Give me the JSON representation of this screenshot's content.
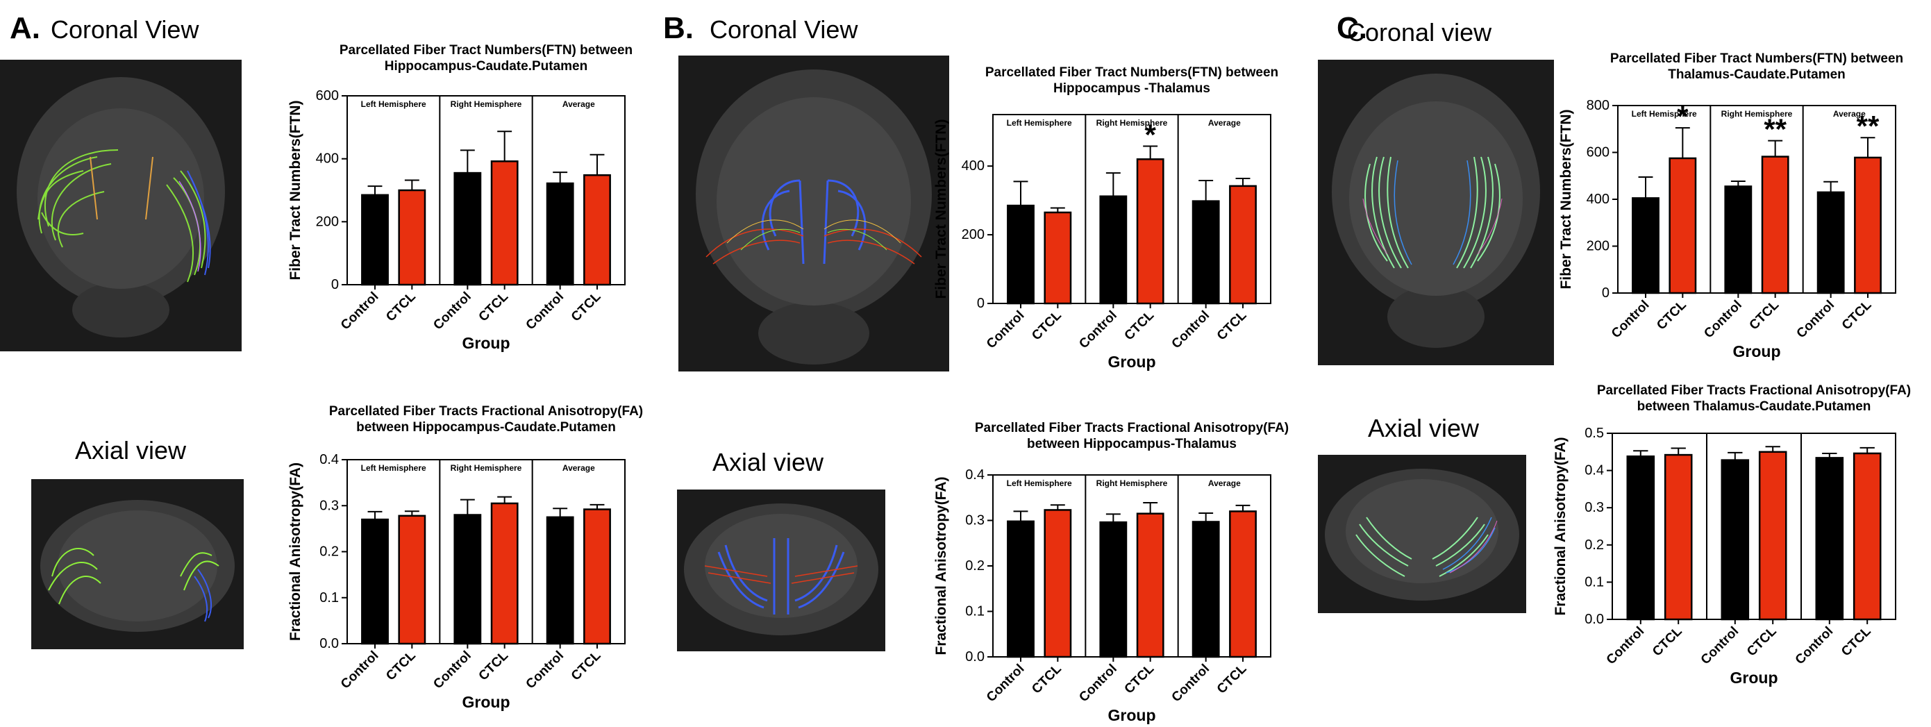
{
  "panels": [
    {
      "letter": "A.",
      "coronal": "Coronal View",
      "axial": "Axial view"
    },
    {
      "letter": "B.",
      "coronal": "Coronal View",
      "axial": "Axial view"
    },
    {
      "letter": "C.",
      "coronal": "Coronal view",
      "axial": "Axial view"
    }
  ],
  "colors": {
    "control": "#000000",
    "ctcl": "#e8300f",
    "brain_bg": "#1b1b1b"
  },
  "chart_data": [
    {
      "id": "a-ftn",
      "type": "bar",
      "title": [
        "Parcellated Fiber Tract Numbers(FTN) between",
        "Hippocampus-Caudate.Putamen"
      ],
      "ylabel": "Fiber Tract Numbers(FTN)",
      "xlabel": "Group",
      "ylim": [
        0,
        600
      ],
      "yticks": [
        "0",
        "200",
        "400",
        "600"
      ],
      "groups": [
        "Left Hemisphere",
        "Right Hemisphere",
        "Average"
      ],
      "categories": [
        "Control",
        "CTCL"
      ],
      "values": [
        [
          285,
          300
        ],
        [
          355,
          392
        ],
        [
          322,
          348
        ]
      ],
      "errors": [
        [
          28,
          32
        ],
        [
          72,
          95
        ],
        [
          35,
          65
        ]
      ],
      "stars": [
        [
          "",
          ""
        ],
        [
          "",
          ""
        ],
        [
          "",
          ""
        ]
      ]
    },
    {
      "id": "a-fa",
      "type": "bar",
      "title": [
        "Parcellated Fiber Tracts Fractional Anisotropy(FA)",
        "between Hippocampus-Caudate.Putamen"
      ],
      "ylabel": "Fractional Anisotropy(FA)",
      "xlabel": "Group",
      "ylim": [
        0,
        0.4
      ],
      "yticks": [
        "0.0",
        "0.1",
        "0.2",
        "0.3",
        "0.4"
      ],
      "groups": [
        "Left Hemisphere",
        "Right Hemisphere",
        "Average"
      ],
      "categories": [
        "Control",
        "CTCL"
      ],
      "values": [
        [
          0.27,
          0.278
        ],
        [
          0.28,
          0.305
        ],
        [
          0.275,
          0.292
        ]
      ],
      "errors": [
        [
          0.017,
          0.01
        ],
        [
          0.033,
          0.014
        ],
        [
          0.019,
          0.01
        ]
      ],
      "stars": [
        [
          "",
          ""
        ],
        [
          "",
          ""
        ],
        [
          "",
          ""
        ]
      ]
    },
    {
      "id": "b-ftn",
      "type": "bar",
      "title": [
        "Parcellated Fiber Tract Numbers(FTN) between",
        "Hippocampus -Thalamus"
      ],
      "ylabel": "Fiber Tract Numbers(FTN)",
      "xlabel": "Group",
      "ylim": [
        0,
        550
      ],
      "yticks": [
        "0",
        "200",
        "400"
      ],
      "ytick_values": [
        0,
        200,
        400
      ],
      "groups": [
        "Left Hemisphere",
        "Right Hemisphere",
        "Average"
      ],
      "categories": [
        "Control",
        "CTCL"
      ],
      "values": [
        [
          285,
          265
        ],
        [
          312,
          420
        ],
        [
          298,
          342
        ]
      ],
      "errors": [
        [
          70,
          13
        ],
        [
          68,
          38
        ],
        [
          60,
          22
        ]
      ],
      "stars": [
        [
          "",
          ""
        ],
        [
          "",
          "*"
        ],
        [
          "",
          ""
        ]
      ]
    },
    {
      "id": "b-fa",
      "type": "bar",
      "title": [
        "Parcellated Fiber Tracts Fractional Anisotropy(FA)",
        "between Hippocampus-Thalamus"
      ],
      "ylabel": "Fractional Anisotropy(FA)",
      "xlabel": "Group",
      "ylim": [
        0,
        0.4
      ],
      "yticks": [
        "0.0",
        "0.1",
        "0.2",
        "0.3",
        "0.4"
      ],
      "groups": [
        "Left Hemisphere",
        "Right Hemisphere",
        "Average"
      ],
      "categories": [
        "Control",
        "CTCL"
      ],
      "values": [
        [
          0.298,
          0.323
        ],
        [
          0.296,
          0.315
        ],
        [
          0.297,
          0.32
        ]
      ],
      "errors": [
        [
          0.022,
          0.011
        ],
        [
          0.018,
          0.024
        ],
        [
          0.019,
          0.013
        ]
      ],
      "stars": [
        [
          "",
          ""
        ],
        [
          "",
          ""
        ],
        [
          "",
          ""
        ]
      ]
    },
    {
      "id": "c-ftn",
      "type": "bar",
      "title": [
        "Parcellated Fiber Tract Numbers(FTN) between",
        "Thalamus-Caudate.Putamen"
      ],
      "ylabel": "Fiber Tract Numbers(FTN)",
      "xlabel": "Group",
      "ylim": [
        0,
        800
      ],
      "yticks": [
        "0",
        "200",
        "400",
        "600",
        "800"
      ],
      "groups": [
        "Left Hemisphere",
        "Right Hemisphere",
        "Average"
      ],
      "categories": [
        "Control",
        "CTCL"
      ],
      "values": [
        [
          405,
          575
        ],
        [
          455,
          582
        ],
        [
          430,
          578
        ]
      ],
      "errors": [
        [
          90,
          130
        ],
        [
          22,
          68
        ],
        [
          45,
          85
        ]
      ],
      "stars": [
        [
          "",
          "*"
        ],
        [
          "",
          "**"
        ],
        [
          "",
          "**"
        ]
      ]
    },
    {
      "id": "c-fa",
      "type": "bar",
      "title": [
        "Parcellated Fiber Tracts Fractional Anisotropy(FA)",
        "between Thalamus-Caudate.Putamen"
      ],
      "ylabel": "Fractional Anisotropy(FA)",
      "xlabel": "Group",
      "ylim": [
        0,
        0.5
      ],
      "yticks": [
        "0.0",
        "0.1",
        "0.2",
        "0.3",
        "0.4",
        "0.5"
      ],
      "groups": [
        "",
        "",
        ""
      ],
      "categories": [
        "Control",
        "CTCL"
      ],
      "values": [
        [
          0.438,
          0.442
        ],
        [
          0.428,
          0.45
        ],
        [
          0.434,
          0.446
        ]
      ],
      "errors": [
        [
          0.015,
          0.018
        ],
        [
          0.02,
          0.014
        ],
        [
          0.012,
          0.015
        ]
      ],
      "stars": [
        [
          "",
          ""
        ],
        [
          "",
          ""
        ],
        [
          "",
          ""
        ]
      ]
    }
  ]
}
